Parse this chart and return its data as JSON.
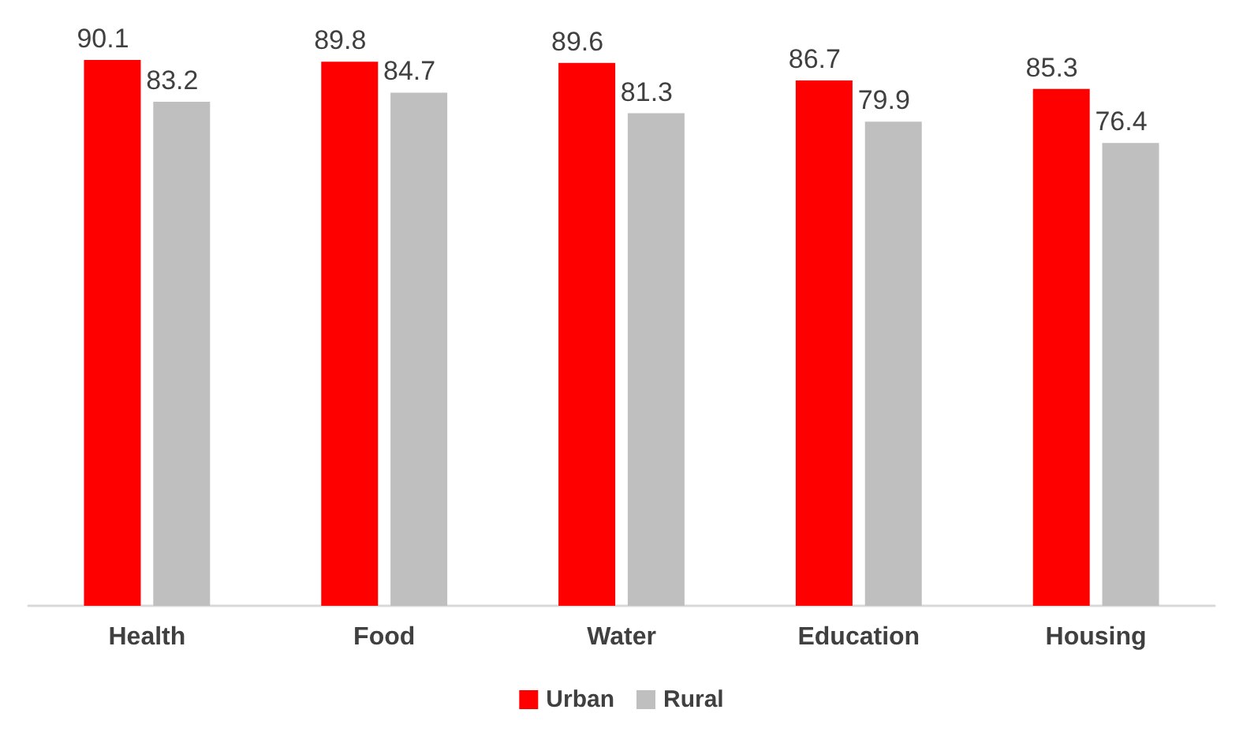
{
  "chart_data": {
    "type": "bar",
    "categories": [
      "Health",
      "Food",
      "Water",
      "Education",
      "Housing"
    ],
    "series": [
      {
        "name": "Urban",
        "color": "#ff0000",
        "values": [
          90.1,
          89.8,
          89.6,
          86.7,
          85.3
        ]
      },
      {
        "name": "Rural",
        "color": "#bfbfbf",
        "values": [
          83.2,
          84.7,
          81.3,
          79.9,
          76.4
        ]
      }
    ],
    "data_labels": true,
    "legend": "bottom"
  }
}
